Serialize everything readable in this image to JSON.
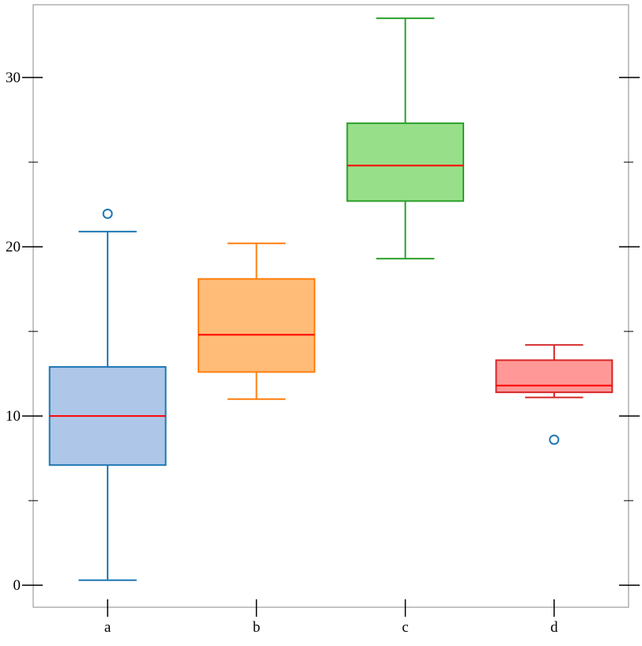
{
  "chart_data": {
    "type": "box",
    "title": "",
    "xlabel": "",
    "ylabel": "",
    "ylim": [
      -1.3,
      34.3
    ],
    "y_ticks_major": [
      0,
      10,
      20,
      30
    ],
    "y_ticks_minor": [
      5,
      15,
      25
    ],
    "grid": false,
    "legend": "none",
    "categories": [
      "a",
      "b",
      "c",
      "d"
    ],
    "boxes": [
      {
        "category": "a",
        "whisker_low": 0.3,
        "q1": 7.1,
        "median": 10.0,
        "q3": 12.9,
        "whisker_high": 20.9,
        "outliers": [
          21.95
        ],
        "stroke": "#1f77b4",
        "fill": "#aec7e8"
      },
      {
        "category": "b",
        "whisker_low": 11.0,
        "q1": 12.6,
        "median": 14.8,
        "q3": 18.1,
        "whisker_high": 20.2,
        "outliers": [],
        "stroke": "#ff7f0e",
        "fill": "#ffbb78"
      },
      {
        "category": "c",
        "whisker_low": 19.3,
        "q1": 22.7,
        "median": 24.8,
        "q3": 27.3,
        "whisker_high": 33.5,
        "outliers": [],
        "stroke": "#2ca02c",
        "fill": "#98df8a"
      },
      {
        "category": "d",
        "whisker_low": 11.1,
        "q1": 11.4,
        "median": 11.8,
        "q3": 13.3,
        "whisker_high": 14.2,
        "outliers": [
          8.6
        ],
        "stroke": "#d62728",
        "fill": "#ff9896",
        "outlier_color": "#1f77b4"
      }
    ],
    "median_color": "#ff0000"
  }
}
